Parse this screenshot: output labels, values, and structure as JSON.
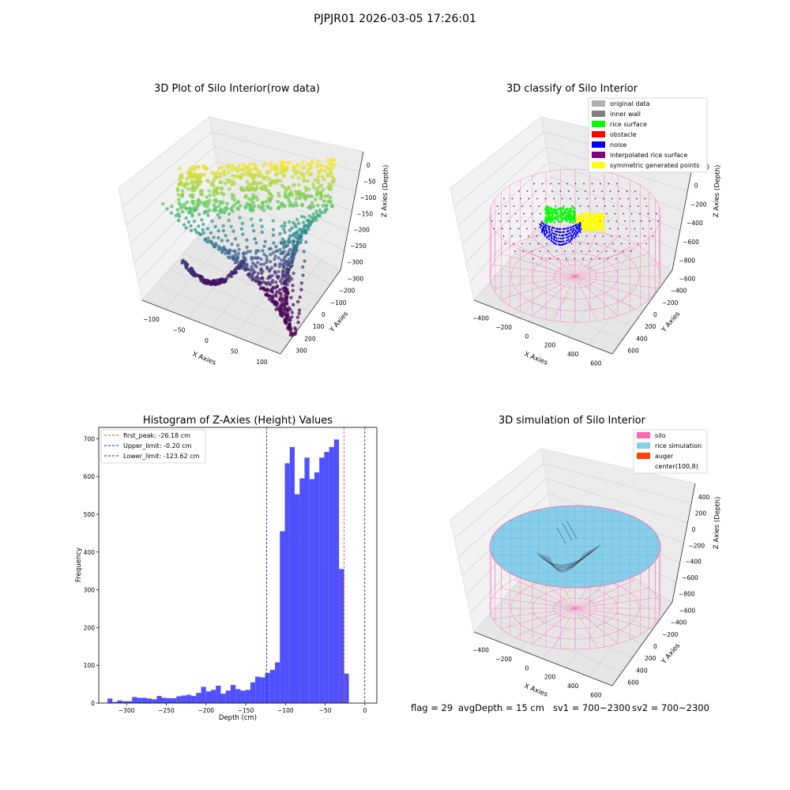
{
  "suptitle": "PJPJR01 2026-03-05 17:26:01",
  "status": {
    "flag": "flag = 29",
    "avg_depth": "avgDepth = 15 cm",
    "sv1": "sv1 = 700~2300",
    "sv2": "sv2 = 700~2300"
  },
  "colors": {
    "hist_bar": "#4c4cff",
    "first_peak": "#e8443a",
    "limit": "#1a1aff",
    "silo": "#ff69b4",
    "rice_simulation": "#87ceeb",
    "auger": "#ff4500",
    "original": "#b0b0b0",
    "inner_wall": "#808080",
    "rice_surface": "#00ff00",
    "obstacle": "#ff0000",
    "noise": "#0000ff",
    "interpolated": "#800080",
    "symmetric": "#ffff00"
  },
  "chart_data": [
    {
      "type": "scatter",
      "subtype": "3d",
      "title": "3D Plot of Silo Interior(row data)",
      "xlabel": "X Axies",
      "ylabel": "Y Axies",
      "zlabel": "Z Axies (Depth)",
      "x_ticks": [
        "−100",
        "−50",
        "0",
        "50",
        "100"
      ],
      "y_ticks": [
        "−300",
        "−200",
        "−100",
        "0",
        "100",
        "200",
        "300"
      ],
      "z_ticks": [
        "0",
        "−50",
        "−100",
        "−150",
        "−200",
        "−250",
        "−300"
      ],
      "colormap": "viridis"
    },
    {
      "type": "scatter",
      "subtype": "3d",
      "title": "3D classify of Silo Interior",
      "xlabel": "X Axies",
      "ylabel": "Y Axies",
      "zlabel": "Z Axies (Depth)",
      "x_ticks": [
        "−400",
        "−200",
        "0",
        "200",
        "400",
        "600"
      ],
      "y_ticks": [
        "−600",
        "−400",
        "−200",
        "0",
        "200",
        "400",
        "600"
      ],
      "z_ticks": [
        "200",
        "0",
        "−200",
        "−400",
        "−600",
        "−800"
      ],
      "legend": [
        "original data",
        "inner wall",
        "rice surface",
        "obstacle",
        "noise",
        "interpolated rice surface",
        "symmetric generated points"
      ],
      "legend_position": "top-right"
    },
    {
      "type": "bar",
      "subtype": "histogram",
      "title": "Histogram of Z-Axies (Height) Values",
      "xlabel": "Depth (cm)",
      "ylabel": "Frequency",
      "xlim": [
        -335,
        15
      ],
      "ylim": [
        0,
        730
      ],
      "x_ticks": [
        -300,
        -250,
        -200,
        -150,
        -100,
        -50,
        0
      ],
      "y_ticks": [
        0,
        100,
        200,
        300,
        400,
        500,
        600,
        700
      ],
      "bin_width": 6.2,
      "bin_start": -324,
      "values": [
        12,
        3,
        7,
        5,
        5,
        16,
        14,
        14,
        12,
        10,
        19,
        14,
        13,
        13,
        18,
        20,
        22,
        19,
        27,
        43,
        31,
        35,
        46,
        25,
        33,
        48,
        37,
        33,
        35,
        55,
        70,
        68,
        80,
        88,
        108,
        455,
        635,
        678,
        553,
        595,
        650,
        593,
        611,
        650,
        665,
        678,
        698,
        355,
        78
      ],
      "lines": [
        {
          "label": "first_peak: -26.18 cm",
          "x": -26.18,
          "kind": "first_peak"
        },
        {
          "label": "Upper_limit: -0.20 cm",
          "x": -0.2,
          "kind": "limit"
        },
        {
          "label": "Lower_limit: -123.62 cm",
          "x": -123.62,
          "kind": "limit"
        }
      ],
      "legend_position": "top-left"
    },
    {
      "type": "scatter",
      "subtype": "3d",
      "title": "3D simulation of Silo Interior",
      "xlabel": "X Axies",
      "ylabel": "Y Axies",
      "zlabel": "Z Axies (Depth)",
      "x_ticks": [
        "−400",
        "−200",
        "0",
        "200",
        "400",
        "600"
      ],
      "y_ticks": [
        "−600",
        "−400",
        "−200",
        "0",
        "200",
        "400",
        "600"
      ],
      "z_ticks": [
        "400",
        "200",
        "0",
        "−200",
        "−400",
        "−600",
        "−800"
      ],
      "legend": [
        "silo",
        "rice simulation",
        "auger",
        "center(100,8)"
      ],
      "legend_position": "top-right"
    }
  ]
}
